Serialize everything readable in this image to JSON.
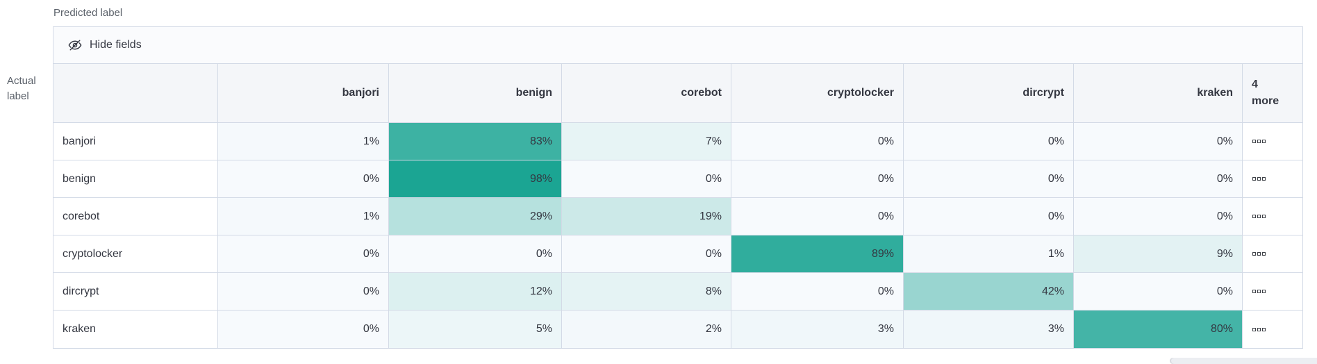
{
  "axis": {
    "predicted_label": "Predicted label",
    "actual_label": "Actual label"
  },
  "toolbar": {
    "hide_fields_label": "Hide fields"
  },
  "more_column": {
    "count": "4",
    "label": "more"
  },
  "chart_data": {
    "type": "heatmap",
    "columns": [
      "banjori",
      "benign",
      "corebot",
      "cryptolocker",
      "dircrypt",
      "kraken"
    ],
    "rows": [
      "banjori",
      "benign",
      "corebot",
      "cryptolocker",
      "dircrypt",
      "kraken"
    ],
    "values_percent": [
      [
        1,
        83,
        7,
        0,
        0,
        0
      ],
      [
        0,
        98,
        0,
        0,
        0,
        0
      ],
      [
        1,
        29,
        19,
        0,
        0,
        0
      ],
      [
        0,
        0,
        0,
        89,
        1,
        9
      ],
      [
        0,
        12,
        8,
        0,
        42,
        0
      ],
      [
        0,
        5,
        2,
        3,
        3,
        80
      ]
    ],
    "unit": "%",
    "hidden_columns_count": 4,
    "legend_position": "none",
    "grid": true
  },
  "colors": {
    "heat_base": "#17a391",
    "heat_floor": "#f7fafd",
    "border": "#d3dae6",
    "text": "#343741",
    "subdued_text": "#5a6069",
    "header_bg": "#f4f6f9",
    "toolbar_bg": "#fafbfd"
  },
  "scrollbar": {
    "orientation": "horizontal"
  }
}
